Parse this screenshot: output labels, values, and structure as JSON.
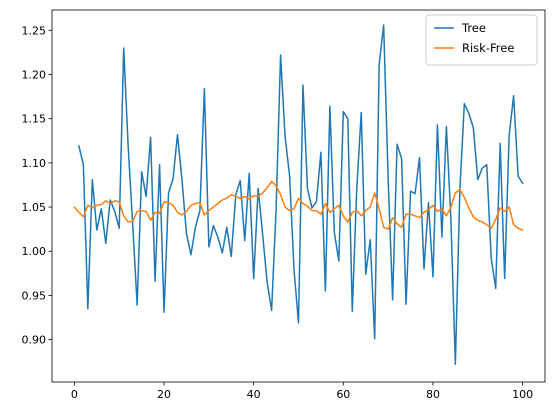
{
  "chart_data": {
    "type": "line",
    "title": "",
    "xlabel": "",
    "ylabel": "",
    "xlim": [
      -5,
      105
    ],
    "ylim": [
      0.852,
      1.273
    ],
    "xticks": [
      0,
      20,
      40,
      60,
      80,
      100
    ],
    "yticks": [
      0.9,
      0.95,
      1.0,
      1.05,
      1.1,
      1.15,
      1.2,
      1.25
    ],
    "x_tick_labels": [
      "0",
      "20",
      "40",
      "60",
      "80",
      "100"
    ],
    "y_tick_labels": [
      "0.90",
      "0.95",
      "1.00",
      "1.05",
      "1.10",
      "1.15",
      "1.20",
      "1.25"
    ],
    "grid": false,
    "legend_position": "upper-right",
    "series": [
      {
        "name": "Tree",
        "color": "#1f77b4",
        "x": [
          1,
          2,
          3,
          4,
          5,
          6,
          7,
          8,
          9,
          10,
          11,
          12,
          13,
          14,
          15,
          16,
          17,
          18,
          19,
          20,
          21,
          22,
          23,
          24,
          25,
          26,
          27,
          28,
          29,
          30,
          31,
          32,
          33,
          34,
          35,
          36,
          37,
          38,
          39,
          40,
          41,
          42,
          43,
          44,
          45,
          46,
          47,
          48,
          49,
          50,
          51,
          52,
          53,
          54,
          55,
          56,
          57,
          58,
          59,
          60,
          61,
          62,
          63,
          64,
          65,
          66,
          67,
          68,
          69,
          70,
          71,
          72,
          73,
          74,
          75,
          76,
          77,
          78,
          79,
          80,
          81,
          82,
          83,
          84,
          85,
          86,
          87,
          88,
          89,
          90,
          91,
          92,
          93,
          94,
          95,
          96,
          97,
          98,
          99,
          100
        ],
        "values": [
          1.119,
          1.098,
          0.935,
          1.081,
          1.024,
          1.048,
          1.009,
          1.058,
          1.045,
          1.026,
          1.23,
          1.118,
          1.031,
          0.939,
          1.09,
          1.062,
          1.129,
          0.966,
          1.098,
          0.931,
          1.066,
          1.082,
          1.132,
          1.081,
          1.02,
          0.996,
          1.027,
          1.046,
          1.184,
          1.005,
          1.029,
          1.016,
          0.998,
          1.027,
          0.994,
          1.064,
          1.08,
          1.012,
          1.088,
          0.969,
          1.071,
          1.019,
          0.965,
          0.933,
          1.047,
          1.222,
          1.13,
          1.086,
          0.979,
          0.919,
          1.188,
          1.071,
          1.049,
          1.056,
          1.112,
          0.955,
          1.164,
          1.021,
          0.989,
          1.158,
          1.15,
          0.932,
          1.071,
          1.157,
          0.974,
          1.013,
          0.901,
          1.211,
          1.256,
          1.082,
          0.945,
          1.121,
          1.105,
          0.94,
          1.068,
          1.065,
          1.106,
          0.98,
          1.055,
          0.971,
          1.143,
          1.016,
          1.141,
          1.037,
          0.872,
          1.069,
          1.167,
          1.156,
          1.14,
          1.081,
          1.094,
          1.098,
          0.992,
          0.958,
          1.122,
          0.969,
          1.131,
          1.176,
          1.085,
          1.077
        ]
      },
      {
        "name": "Risk-Free",
        "color": "#ff7f0e",
        "x": [
          0,
          1,
          2,
          3,
          4,
          5,
          6,
          7,
          8,
          9,
          10,
          11,
          12,
          13,
          14,
          15,
          16,
          17,
          18,
          19,
          20,
          21,
          22,
          23,
          24,
          25,
          26,
          27,
          28,
          29,
          30,
          31,
          32,
          33,
          34,
          35,
          36,
          37,
          38,
          39,
          40,
          41,
          42,
          43,
          44,
          45,
          46,
          47,
          48,
          49,
          50,
          51,
          52,
          53,
          54,
          55,
          56,
          57,
          58,
          59,
          60,
          61,
          62,
          63,
          64,
          65,
          66,
          67,
          68,
          69,
          70,
          71,
          72,
          73,
          74,
          75,
          76,
          77,
          78,
          79,
          80,
          81,
          82,
          83,
          84,
          85,
          86,
          87,
          88,
          89,
          90,
          91,
          92,
          93,
          94,
          95,
          96,
          97,
          98,
          99,
          100
        ],
        "values": [
          1.05,
          1.044,
          1.039,
          1.052,
          1.049,
          1.052,
          1.053,
          1.057,
          1.054,
          1.057,
          1.056,
          1.04,
          1.033,
          1.034,
          1.045,
          1.046,
          1.045,
          1.035,
          1.044,
          1.043,
          1.056,
          1.055,
          1.052,
          1.044,
          1.041,
          1.045,
          1.052,
          1.054,
          1.055,
          1.041,
          1.046,
          1.05,
          1.054,
          1.058,
          1.06,
          1.064,
          1.062,
          1.06,
          1.062,
          1.059,
          1.063,
          1.062,
          1.066,
          1.072,
          1.079,
          1.074,
          1.064,
          1.05,
          1.046,
          1.048,
          1.06,
          1.054,
          1.051,
          1.046,
          1.046,
          1.042,
          1.054,
          1.044,
          1.048,
          1.052,
          1.04,
          1.033,
          1.044,
          1.046,
          1.04,
          1.046,
          1.05,
          1.066,
          1.048,
          1.027,
          1.025,
          1.038,
          1.031,
          1.027,
          1.042,
          1.042,
          1.04,
          1.038,
          1.044,
          1.047,
          1.052,
          1.045,
          1.048,
          1.04,
          1.05,
          1.066,
          1.07,
          1.061,
          1.049,
          1.039,
          1.035,
          1.033,
          1.03,
          1.026,
          1.036,
          1.049,
          1.045,
          1.05,
          1.03,
          1.026,
          1.024
        ]
      }
    ]
  }
}
